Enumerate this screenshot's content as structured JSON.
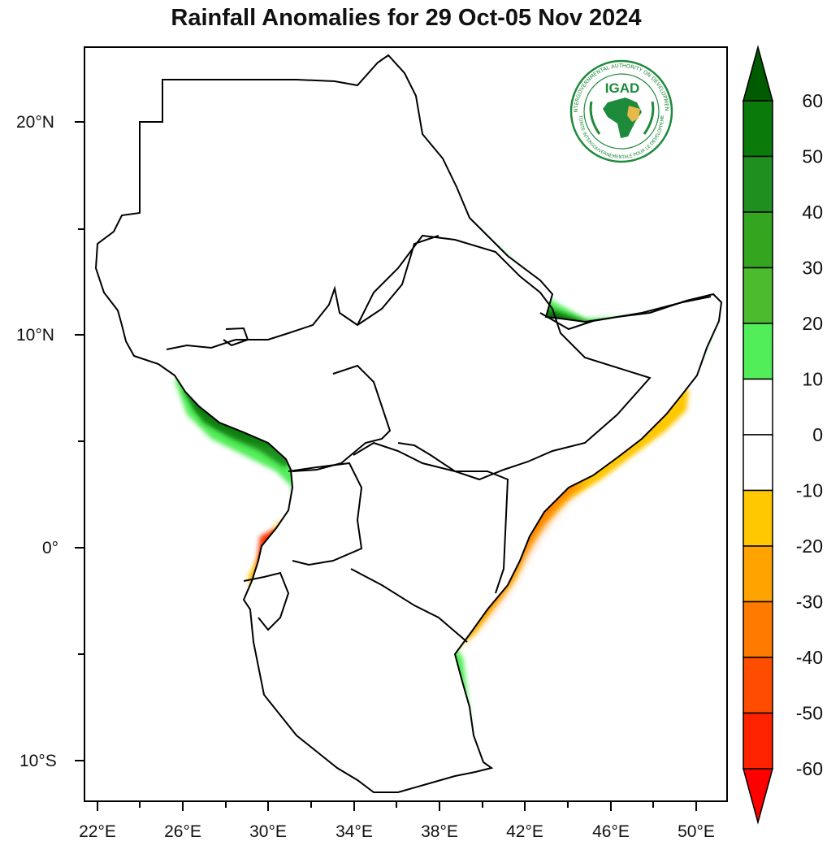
{
  "title": "Rainfall Anomalies for 29 Oct-05 Nov 2024",
  "logo": {
    "abbr": "IGAD",
    "ring_text_en": "INTERGOVERNMENTAL AUTHORITY ON DEVELOPMENT",
    "ring_text_fr": "AUTORITE INTERGOUVERNEMENTALE POUR LE DEVELOPPEMENT",
    "primary_color": "#1e8a3c",
    "accent_color": "#e7b84a"
  },
  "axes": {
    "lat_labels": [
      "20°N",
      "10°N",
      "0°",
      "10°S"
    ],
    "lon_labels": [
      "22°E",
      "26°E",
      "30°E",
      "34°E",
      "38°E",
      "42°E",
      "46°E",
      "50°E"
    ],
    "lat_range": [
      -12,
      23
    ],
    "lon_range": [
      21,
      51.5
    ]
  },
  "colorbar": {
    "labels": [
      "60",
      "50",
      "40",
      "30",
      "20",
      "10",
      "0",
      "-10",
      "-20",
      "-30",
      "-40",
      "-50",
      "-60"
    ],
    "colors": [
      "#006400",
      "#0a7a0a",
      "#1f8f1f",
      "#33a51f",
      "#4cbb2e",
      "#52ee5a",
      "#ffffff",
      "#ffffff",
      "#ffc800",
      "#ffa300",
      "#ff7b00",
      "#ff4d00",
      "#ff2200",
      "#ff0000"
    ],
    "top_arrow_color": "#005a00",
    "bottom_arrow_color": "#ff0000"
  }
}
